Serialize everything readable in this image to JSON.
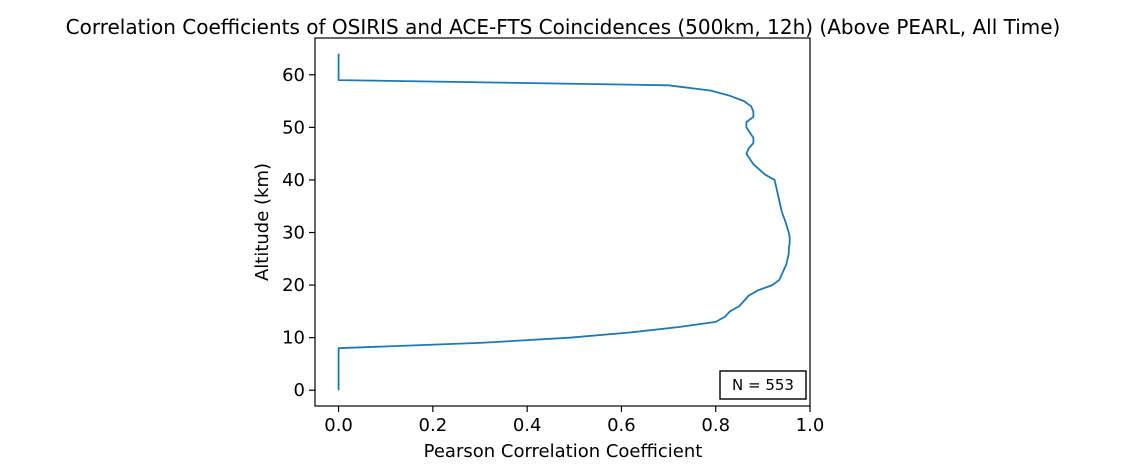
{
  "chart_data": {
    "type": "line",
    "title": "Correlation Coefficients of OSIRIS and ACE-FTS Coincidences (500km, 12h) (Above PEARL, All Time)",
    "xlabel": "Pearson Correlation Coefficient",
    "ylabel": "Altitude (km)",
    "xlim": [
      -0.05,
      1.0
    ],
    "ylim": [
      -3,
      67
    ],
    "xticks": [
      0.0,
      0.2,
      0.4,
      0.6,
      0.8,
      1.0
    ],
    "xtick_labels": [
      "0.0",
      "0.2",
      "0.4",
      "0.6",
      "0.8",
      "1.0"
    ],
    "yticks": [
      0,
      10,
      20,
      30,
      40,
      50,
      60
    ],
    "ytick_labels": [
      "0",
      "10",
      "20",
      "30",
      "40",
      "50",
      "60"
    ],
    "grid": false,
    "annotation": "N = 553",
    "line_color": "#1f77b4",
    "series": [
      {
        "values": [
          [
            0.0,
            0
          ],
          [
            0.0,
            8
          ],
          [
            0.3,
            9
          ],
          [
            0.49,
            10
          ],
          [
            0.62,
            11
          ],
          [
            0.72,
            12
          ],
          [
            0.8,
            13
          ],
          [
            0.82,
            14
          ],
          [
            0.83,
            15
          ],
          [
            0.85,
            16
          ],
          [
            0.86,
            17
          ],
          [
            0.87,
            18
          ],
          [
            0.89,
            19
          ],
          [
            0.92,
            20
          ],
          [
            0.935,
            21
          ],
          [
            0.94,
            22
          ],
          [
            0.945,
            23
          ],
          [
            0.95,
            24
          ],
          [
            0.955,
            26
          ],
          [
            0.955,
            27
          ],
          [
            0.957,
            28
          ],
          [
            0.957,
            29
          ],
          [
            0.955,
            30
          ],
          [
            0.948,
            32
          ],
          [
            0.94,
            34
          ],
          [
            0.935,
            36
          ],
          [
            0.93,
            38
          ],
          [
            0.925,
            40
          ],
          [
            0.905,
            41
          ],
          [
            0.88,
            43
          ],
          [
            0.865,
            45
          ],
          [
            0.87,
            46
          ],
          [
            0.88,
            47
          ],
          [
            0.88,
            48
          ],
          [
            0.865,
            50
          ],
          [
            0.865,
            51
          ],
          [
            0.88,
            52
          ],
          [
            0.88,
            53
          ],
          [
            0.875,
            54
          ],
          [
            0.86,
            55
          ],
          [
            0.83,
            56
          ],
          [
            0.79,
            57
          ],
          [
            0.7,
            58
          ],
          [
            0.0,
            59
          ],
          [
            0.0,
            64
          ]
        ]
      }
    ]
  }
}
